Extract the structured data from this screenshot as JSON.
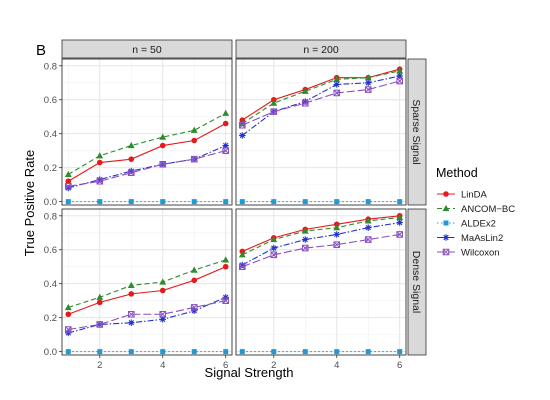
{
  "chart_data": {
    "type": "line",
    "panel_tag": "B",
    "xlabel": "Signal Strength",
    "ylabel": "True Positive Rate",
    "xlim": [
      0.8,
      6.2
    ],
    "ylim": [
      -0.02,
      0.84
    ],
    "xticks": [
      2,
      4,
      6
    ],
    "yticks": [
      0.0,
      0.2,
      0.4,
      0.6,
      0.8
    ],
    "grid": true,
    "legend_title": "Method",
    "legend_position": "right",
    "columns": [
      "n = 50",
      "n = 200"
    ],
    "rows": [
      "Sparse Signal",
      "Dense Signal"
    ],
    "methods": [
      {
        "name": "LinDA",
        "color": "#E41A1C",
        "marker": "circle",
        "dash": ""
      },
      {
        "name": "ANCOM−BC",
        "color": "#2E8B2E",
        "marker": "triangle",
        "dash": "5,3"
      },
      {
        "name": "ALDEx2",
        "color": "#1E9BD7",
        "marker": "square",
        "dash": "1.5,2.5"
      },
      {
        "name": "MaAsLin2",
        "color": "#2233C9",
        "marker": "star",
        "dash": "6,2,1.5,2"
      },
      {
        "name": "Wilcoxon",
        "color": "#8A4FC2",
        "marker": "boxx",
        "dash": "8,3"
      }
    ],
    "x": [
      1,
      2,
      3,
      4,
      5,
      6
    ],
    "panels": [
      {
        "col": "n = 50",
        "row": "Sparse Signal",
        "series": [
          {
            "name": "LinDA",
            "values": [
              0.12,
              0.23,
              0.25,
              0.33,
              0.36,
              0.46
            ]
          },
          {
            "name": "ANCOM−BC",
            "values": [
              0.16,
              0.27,
              0.33,
              0.38,
              0.42,
              0.52
            ]
          },
          {
            "name": "ALDEx2",
            "values": [
              0.0,
              0.0,
              0.0,
              0.0,
              0.0,
              0.0
            ]
          },
          {
            "name": "MaAsLin2",
            "values": [
              0.08,
              0.13,
              0.18,
              0.22,
              0.25,
              0.33
            ]
          },
          {
            "name": "Wilcoxon",
            "values": [
              0.09,
              0.12,
              0.17,
              0.22,
              0.25,
              0.3
            ]
          }
        ]
      },
      {
        "col": "n = 200",
        "row": "Sparse Signal",
        "series": [
          {
            "name": "LinDA",
            "values": [
              0.48,
              0.6,
              0.66,
              0.73,
              0.73,
              0.78
            ]
          },
          {
            "name": "ANCOM−BC",
            "values": [
              0.46,
              0.58,
              0.65,
              0.72,
              0.73,
              0.77
            ]
          },
          {
            "name": "ALDEx2",
            "values": [
              0.0,
              0.0,
              0.0,
              0.0,
              0.0,
              0.0
            ]
          },
          {
            "name": "MaAsLin2",
            "values": [
              0.39,
              0.53,
              0.59,
              0.69,
              0.7,
              0.74
            ]
          },
          {
            "name": "Wilcoxon",
            "values": [
              0.45,
              0.53,
              0.58,
              0.64,
              0.66,
              0.71
            ]
          }
        ]
      },
      {
        "col": "n = 50",
        "row": "Dense Signal",
        "series": [
          {
            "name": "LinDA",
            "values": [
              0.22,
              0.29,
              0.34,
              0.36,
              0.42,
              0.5
            ]
          },
          {
            "name": "ANCOM−BC",
            "values": [
              0.26,
              0.32,
              0.39,
              0.41,
              0.48,
              0.54
            ]
          },
          {
            "name": "ALDEx2",
            "values": [
              0.0,
              0.0,
              0.0,
              0.0,
              0.0,
              0.0
            ]
          },
          {
            "name": "MaAsLin2",
            "values": [
              0.11,
              0.16,
              0.17,
              0.19,
              0.24,
              0.32
            ]
          },
          {
            "name": "Wilcoxon",
            "values": [
              0.13,
              0.16,
              0.22,
              0.22,
              0.26,
              0.3
            ]
          }
        ]
      },
      {
        "col": "n = 200",
        "row": "Dense Signal",
        "series": [
          {
            "name": "LinDA",
            "values": [
              0.59,
              0.67,
              0.72,
              0.75,
              0.78,
              0.8
            ]
          },
          {
            "name": "ANCOM−BC",
            "values": [
              0.57,
              0.66,
              0.71,
              0.73,
              0.77,
              0.79
            ]
          },
          {
            "name": "ALDEx2",
            "values": [
              0.0,
              0.0,
              0.0,
              0.0,
              0.0,
              0.0
            ]
          },
          {
            "name": "MaAsLin2",
            "values": [
              0.51,
              0.61,
              0.66,
              0.69,
              0.73,
              0.76
            ]
          },
          {
            "name": "Wilcoxon",
            "values": [
              0.5,
              0.57,
              0.61,
              0.63,
              0.66,
              0.69
            ]
          }
        ]
      }
    ]
  }
}
